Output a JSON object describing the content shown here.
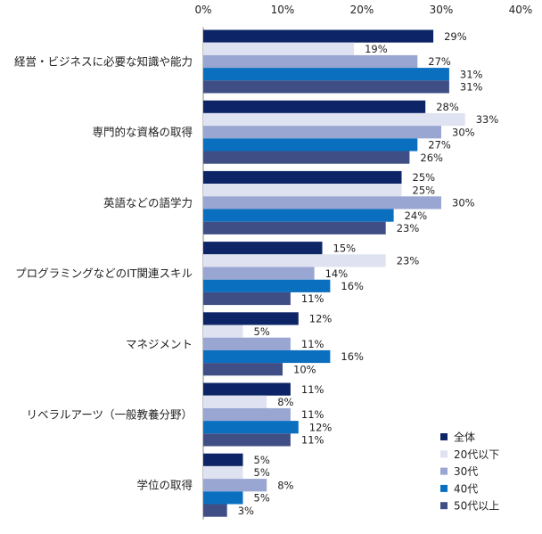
{
  "chart_data": {
    "type": "bar",
    "orientation": "horizontal",
    "categories": [
      "経営・ビジネスに必要な知識や能力",
      "専門的な資格の取得",
      "英語などの語学力",
      "プログラミングなどのIT関連スキル",
      "マネジメント",
      "リベラルアーツ（一般教養分野）",
      "学位の取得"
    ],
    "series": [
      {
        "name": "全体",
        "color": "#0d2466",
        "values": [
          29,
          28,
          25,
          15,
          12,
          11,
          5
        ],
        "labels": [
          "29%",
          "28%",
          "25%",
          "15%",
          "12%",
          "11%",
          "5%"
        ]
      },
      {
        "name": "20代以下",
        "color": "#dfe3f1",
        "values": [
          19,
          33,
          25,
          23,
          5,
          8,
          5
        ],
        "labels": [
          "19%",
          "33%",
          "25%",
          "23%",
          "5%",
          "8%",
          "5%"
        ]
      },
      {
        "name": "30代",
        "color": "#99a6d2",
        "values": [
          27,
          30,
          30,
          14,
          11,
          11,
          8
        ],
        "labels": [
          "27%",
          "30%",
          "30%",
          "14%",
          "11%",
          "11%",
          "8%"
        ]
      },
      {
        "name": "40代",
        "color": "#0b6fc0",
        "values": [
          31,
          27,
          24,
          16,
          16,
          12,
          5
        ],
        "labels": [
          "31%",
          "27%",
          "24%",
          "16%",
          "16%",
          "12%",
          "5%"
        ]
      },
      {
        "name": "50代以上",
        "color": "#3f4f85",
        "values": [
          31,
          26,
          23,
          11,
          10,
          11,
          3
        ],
        "labels": [
          "31%",
          "26%",
          "23%",
          "11%",
          "10%",
          "11%",
          "3%"
        ]
      }
    ],
    "xlim": [
      0,
      40
    ],
    "x_ticks": [
      0,
      10,
      20,
      30,
      40
    ],
    "x_tick_labels": [
      "0%",
      "10%",
      "20%",
      "30%",
      "40%"
    ],
    "x_axis_position": "top",
    "grid": false,
    "legend_position": "bottom-right"
  }
}
